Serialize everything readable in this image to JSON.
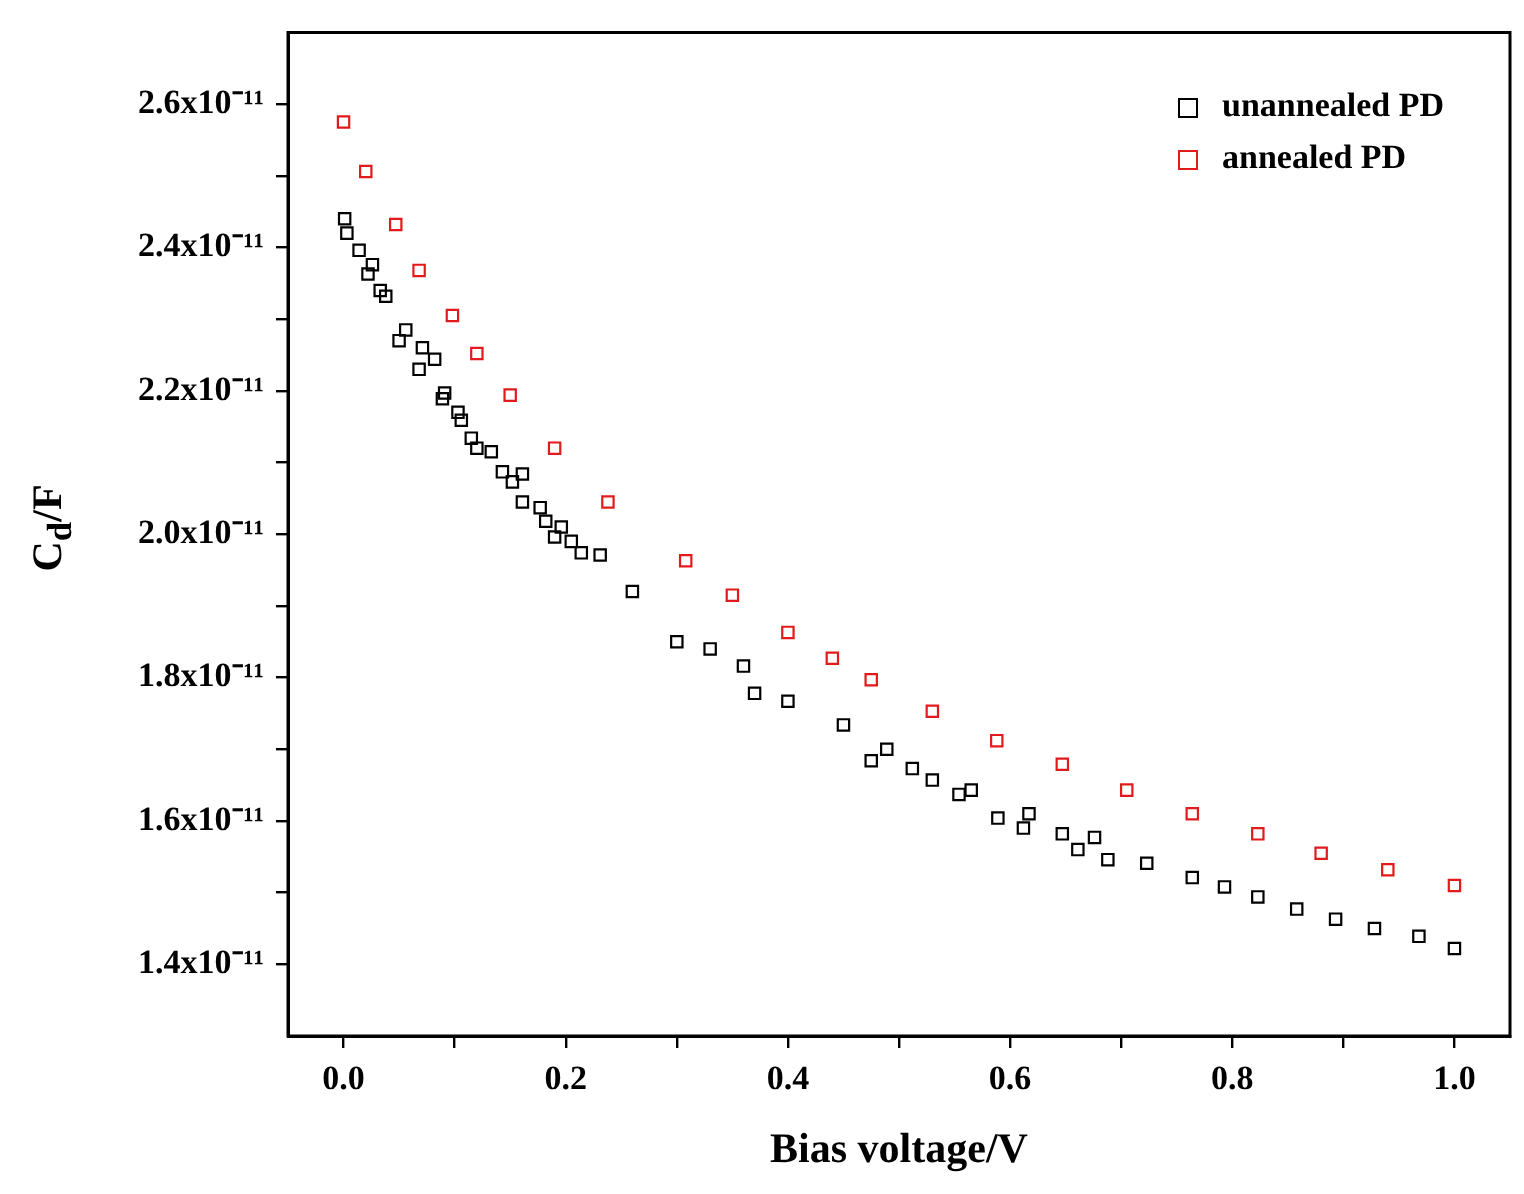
{
  "chart_data": {
    "type": "scatter",
    "xlabel": "Bias voltage/V",
    "ylabel": "C$_{d}$/F",
    "xlim": [
      -0.05,
      1.05
    ],
    "ylim": [
      1.3e-11,
      2.7e-11
    ],
    "xticks": [
      {
        "value": 0,
        "label": "0.0"
      },
      {
        "value": 0.1,
        "label": null
      },
      {
        "value": 0.2,
        "label": "0.2"
      },
      {
        "value": 0.3,
        "label": null
      },
      {
        "value": 0.4,
        "label": "0.4"
      },
      {
        "value": 0.5,
        "label": null
      },
      {
        "value": 0.6,
        "label": "0.6"
      },
      {
        "value": 0.7,
        "label": null
      },
      {
        "value": 0.8,
        "label": "0.8"
      },
      {
        "value": 0.9,
        "label": null
      },
      {
        "value": 1.0,
        "label": "1.0"
      }
    ],
    "yticks": [
      {
        "value": 1.4e-11,
        "label": "1.4x10⁻¹¹"
      },
      {
        "value": 1.5e-11,
        "label": null
      },
      {
        "value": 1.6e-11,
        "label": "1.6x10⁻¹¹"
      },
      {
        "value": 1.7e-11,
        "label": null
      },
      {
        "value": 1.8e-11,
        "label": "1.8x10⁻¹¹"
      },
      {
        "value": 1.9e-11,
        "label": null
      },
      {
        "value": 2e-11,
        "label": "2.0x10⁻¹¹"
      },
      {
        "value": 2.1e-11,
        "label": null
      },
      {
        "value": 2.2e-11,
        "label": "2.2x10⁻¹¹"
      },
      {
        "value": 2.3e-11,
        "label": null
      },
      {
        "value": 2.4e-11,
        "label": "2.4x10⁻¹¹"
      },
      {
        "value": 2.5e-11,
        "label": null
      },
      {
        "value": 2.6e-11,
        "label": "2.6x10⁻¹¹"
      }
    ],
    "grid": false,
    "legend": "top right",
    "marker": "square",
    "series": [
      {
        "name": "unannealed PD",
        "color": "#000000",
        "x": [
          0.001,
          0.003,
          0.014,
          0.022,
          0.026,
          0.033,
          0.038,
          0.05,
          0.056,
          0.068,
          0.071,
          0.082,
          0.089,
          0.091,
          0.103,
          0.106,
          0.115,
          0.12,
          0.133,
          0.143,
          0.152,
          0.161,
          0.161,
          0.177,
          0.182,
          0.19,
          0.196,
          0.205,
          0.214,
          0.231,
          0.26,
          0.3,
          0.33,
          0.36,
          0.37,
          0.4,
          0.45,
          0.475,
          0.489,
          0.512,
          0.53,
          0.554,
          0.565,
          0.589,
          0.612,
          0.617,
          0.647,
          0.661,
          0.676,
          0.688,
          0.723,
          0.764,
          0.793,
          0.823,
          0.858,
          0.893,
          0.928,
          0.968,
          1.0
        ],
        "values": [
          2.44e-11,
          2.42e-11,
          2.396e-11,
          2.363e-11,
          2.376e-11,
          2.34e-11,
          2.332e-11,
          2.27e-11,
          2.285e-11,
          2.23e-11,
          2.26e-11,
          2.244e-11,
          2.189e-11,
          2.197e-11,
          2.17e-11,
          2.159e-11,
          2.134e-11,
          2.12e-11,
          2.115e-11,
          2.087e-11,
          2.073e-11,
          2.084e-11,
          2.045e-11,
          2.037e-11,
          2.018e-11,
          1.996e-11,
          2.01e-11,
          1.99e-11,
          1.974e-11,
          1.971e-11,
          1.92e-11,
          1.85e-11,
          1.84e-11,
          1.816e-11,
          1.778e-11,
          1.767e-11,
          1.734e-11,
          1.684e-11,
          1.7e-11,
          1.673e-11,
          1.657e-11,
          1.637e-11,
          1.643e-11,
          1.604e-11,
          1.59e-11,
          1.61e-11,
          1.582e-11,
          1.56e-11,
          1.577e-11,
          1.546e-11,
          1.541e-11,
          1.521e-11,
          1.508e-11,
          1.494e-11,
          1.477e-11,
          1.463e-11,
          1.45e-11,
          1.439e-11,
          1.422e-11
        ]
      },
      {
        "name": "annealed PD",
        "color": "#e31a1c",
        "x": [
          0.0,
          0.02,
          0.047,
          0.068,
          0.098,
          0.12,
          0.15,
          0.19,
          0.238,
          0.308,
          0.35,
          0.4,
          0.44,
          0.475,
          0.53,
          0.588,
          0.647,
          0.705,
          0.764,
          0.823,
          0.88,
          0.94,
          1.0
        ],
        "values": [
          2.575e-11,
          2.506e-11,
          2.432e-11,
          2.368e-11,
          2.305e-11,
          2.252e-11,
          2.194e-11,
          2.12e-11,
          2.045e-11,
          1.963e-11,
          1.915e-11,
          1.863e-11,
          1.827e-11,
          1.797e-11,
          1.753e-11,
          1.712e-11,
          1.679e-11,
          1.643e-11,
          1.61e-11,
          1.582e-11,
          1.555e-11,
          1.532e-11,
          1.51e-11
        ]
      }
    ]
  }
}
